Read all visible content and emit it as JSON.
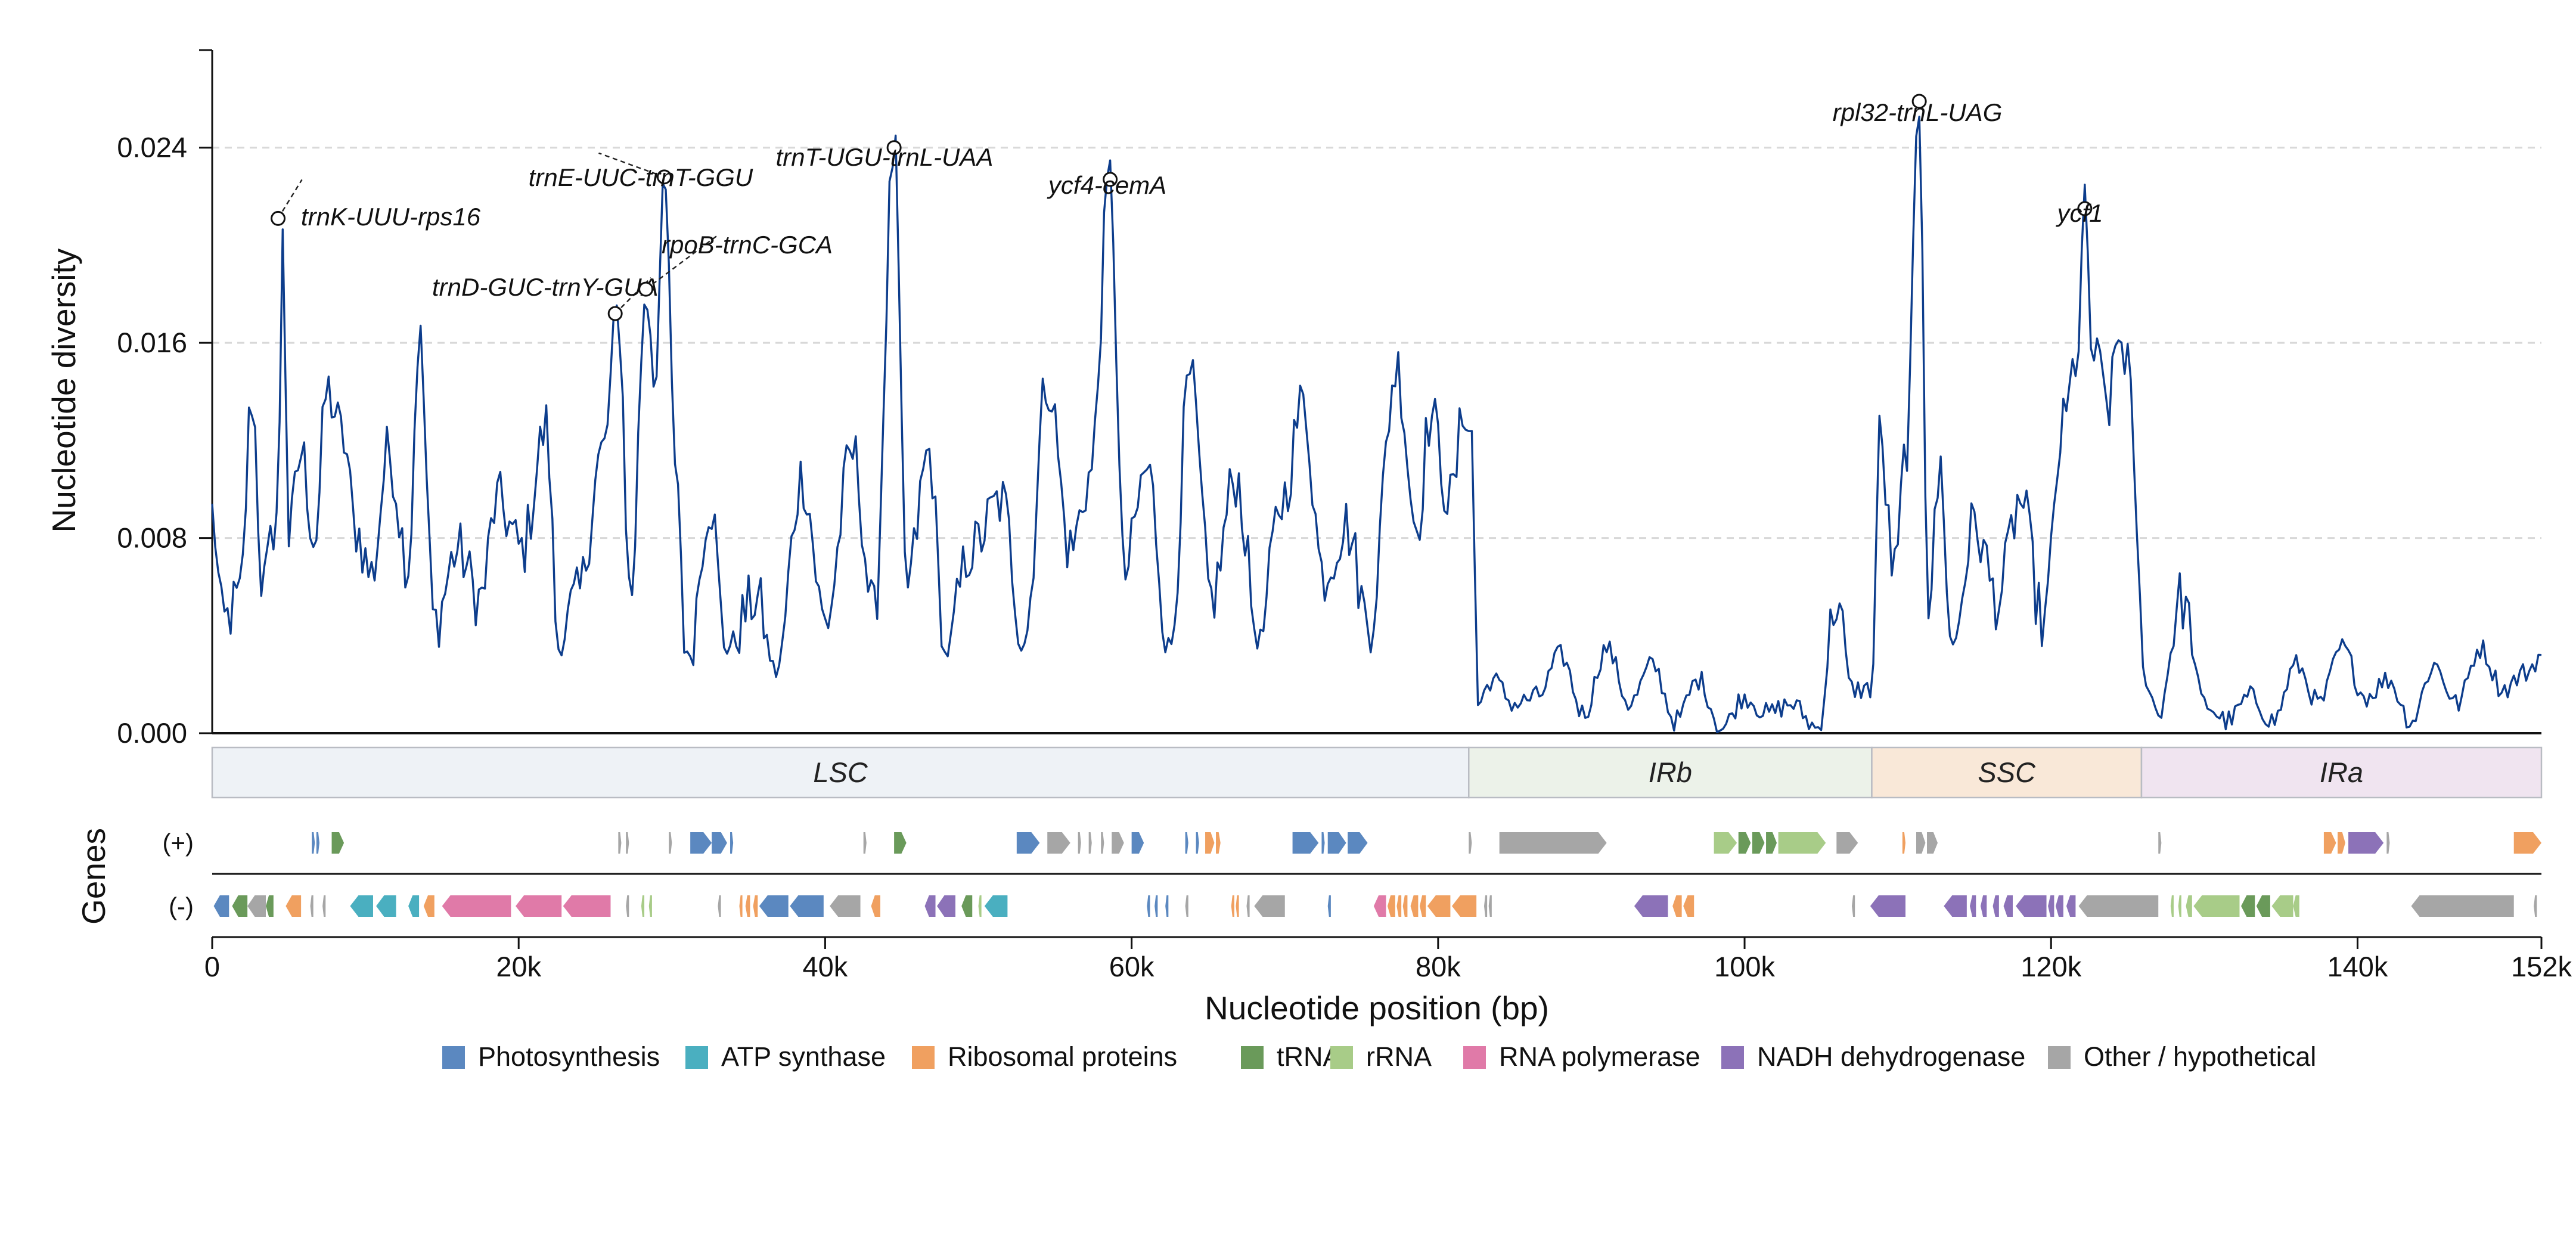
{
  "chart_data": {
    "type": "line",
    "ylabel": "Nucleotide diversity",
    "xlabel": "Nucleotide position (bp)",
    "xlim": [
      0,
      152000
    ],
    "ylim": [
      0,
      0.028
    ],
    "y_ticks": [
      0.0,
      0.008,
      0.016,
      0.024
    ],
    "y_tick_labels": [
      "0.000",
      "0.008",
      "0.016",
      "0.024"
    ],
    "x_ticks": [
      0,
      20000,
      40000,
      60000,
      80000,
      100000,
      120000,
      140000,
      152000
    ],
    "x_tick_labels": [
      "0",
      "20k",
      "40k",
      "60k",
      "80k",
      "100k",
      "120k",
      "140k",
      "152k"
    ],
    "grid": "horizontal dashed",
    "line_color": "#0d3d8c",
    "series_anchors": [
      [
        0,
        0.009
      ],
      [
        700,
        0.0045
      ],
      [
        1800,
        0.0055
      ],
      [
        2600,
        0.0138
      ],
      [
        3300,
        0.006
      ],
      [
        4300,
        0.0092
      ],
      [
        4600,
        0.021
      ],
      [
        5000,
        0.008
      ],
      [
        5800,
        0.0115
      ],
      [
        6700,
        0.008
      ],
      [
        7500,
        0.014
      ],
      [
        8600,
        0.012
      ],
      [
        9300,
        0.0085
      ],
      [
        10400,
        0.0065
      ],
      [
        11500,
        0.0115
      ],
      [
        12800,
        0.007
      ],
      [
        13500,
        0.0162
      ],
      [
        14500,
        0.0045
      ],
      [
        16000,
        0.0075
      ],
      [
        17500,
        0.0055
      ],
      [
        18600,
        0.0095
      ],
      [
        20200,
        0.0075
      ],
      [
        21800,
        0.0125
      ],
      [
        22600,
        0.0035
      ],
      [
        23800,
        0.0055
      ],
      [
        25500,
        0.0115
      ],
      [
        26500,
        0.0172
      ],
      [
        27300,
        0.0055
      ],
      [
        28300,
        0.0182
      ],
      [
        29000,
        0.0145
      ],
      [
        29500,
        0.0228
      ],
      [
        30200,
        0.0115
      ],
      [
        31000,
        0.003
      ],
      [
        32500,
        0.0095
      ],
      [
        33500,
        0.0035
      ],
      [
        35500,
        0.0055
      ],
      [
        36800,
        0.0025
      ],
      [
        38500,
        0.0105
      ],
      [
        40000,
        0.0045
      ],
      [
        41800,
        0.0115
      ],
      [
        43200,
        0.0048
      ],
      [
        44500,
        0.024
      ],
      [
        45300,
        0.006
      ],
      [
        46800,
        0.0115
      ],
      [
        47800,
        0.0032
      ],
      [
        49500,
        0.0075
      ],
      [
        51500,
        0.0095
      ],
      [
        53000,
        0.0038
      ],
      [
        54500,
        0.0145
      ],
      [
        56000,
        0.0075
      ],
      [
        57300,
        0.0105
      ],
      [
        58600,
        0.0227
      ],
      [
        59500,
        0.0065
      ],
      [
        61000,
        0.0108
      ],
      [
        62500,
        0.0035
      ],
      [
        63800,
        0.0145
      ],
      [
        65200,
        0.0055
      ],
      [
        66800,
        0.0105
      ],
      [
        68300,
        0.0038
      ],
      [
        69800,
        0.0095
      ],
      [
        71200,
        0.0135
      ],
      [
        72500,
        0.0065
      ],
      [
        74000,
        0.0085
      ],
      [
        75500,
        0.0045
      ],
      [
        77300,
        0.015
      ],
      [
        78600,
        0.0085
      ],
      [
        79500,
        0.013
      ],
      [
        80800,
        0.0095
      ],
      [
        81800,
        0.0135
      ],
      [
        82200,
        0.012
      ],
      [
        82600,
        0.0012
      ],
      [
        83500,
        0.0022
      ],
      [
        85000,
        0.0012
      ],
      [
        86500,
        0.0015
      ],
      [
        88000,
        0.0032
      ],
      [
        89500,
        0.0008
      ],
      [
        91000,
        0.0035
      ],
      [
        92500,
        0.0012
      ],
      [
        94000,
        0.0028
      ],
      [
        95500,
        0.0005
      ],
      [
        97000,
        0.0022
      ],
      [
        98500,
        0.0002
      ],
      [
        100000,
        0.0015
      ],
      [
        101500,
        0.0008
      ],
      [
        103000,
        0.0012
      ],
      [
        104800,
        0.0002
      ],
      [
        106000,
        0.0055
      ],
      [
        107000,
        0.0018
      ],
      [
        108300,
        0.0018
      ],
      [
        108800,
        0.012
      ],
      [
        109800,
        0.0065
      ],
      [
        110600,
        0.012
      ],
      [
        111400,
        0.0258
      ],
      [
        112000,
        0.0055
      ],
      [
        112800,
        0.0108
      ],
      [
        113500,
        0.0035
      ],
      [
        115000,
        0.0085
      ],
      [
        116500,
        0.0055
      ],
      [
        118000,
        0.0095
      ],
      [
        119500,
        0.0045
      ],
      [
        120800,
        0.0125
      ],
      [
        121700,
        0.0155
      ],
      [
        122200,
        0.0213
      ],
      [
        122700,
        0.0155
      ],
      [
        123800,
        0.0135
      ],
      [
        124400,
        0.0162
      ],
      [
        125000,
        0.0155
      ],
      [
        125500,
        0.0095
      ],
      [
        126000,
        0.0025
      ],
      [
        127000,
        0.0008
      ],
      [
        128500,
        0.0055
      ],
      [
        130000,
        0.0012
      ],
      [
        131500,
        0.0005
      ],
      [
        133000,
        0.0015
      ],
      [
        134500,
        0.0005
      ],
      [
        136000,
        0.0028
      ],
      [
        137500,
        0.0012
      ],
      [
        139000,
        0.0035
      ],
      [
        140500,
        0.0015
      ],
      [
        142000,
        0.0022
      ],
      [
        143500,
        0.0005
      ],
      [
        145000,
        0.0028
      ],
      [
        146500,
        0.0012
      ],
      [
        148000,
        0.0035
      ],
      [
        149500,
        0.0018
      ],
      [
        151000,
        0.0025
      ],
      [
        152000,
        0.0032
      ]
    ],
    "peaks": [
      {
        "label": "trnK-UUU-rps16",
        "x": 4300,
        "y": 0.0211
      },
      {
        "label": "trnD-GUC-trnY-GUA",
        "x": 26300,
        "y": 0.0172
      },
      {
        "label": "rpoB-trnC-GCA",
        "x": 28300,
        "y": 0.0182
      },
      {
        "label": "trnE-UUC-trnT-GGU",
        "x": 29500,
        "y": 0.0228
      },
      {
        "label": "trnT-UGU-trnL-UAA",
        "x": 44500,
        "y": 0.024
      },
      {
        "label": "ycf4-cemA",
        "x": 58600,
        "y": 0.0227
      },
      {
        "label": "rpl32-trnL-UAG",
        "x": 111400,
        "y": 0.0259
      },
      {
        "label": "ycf1",
        "x": 122200,
        "y": 0.0215
      }
    ],
    "regions": [
      {
        "label": "LSC",
        "start": 0,
        "end": 82000,
        "color": "#eef2f6"
      },
      {
        "label": "IRb",
        "start": 82000,
        "end": 108300,
        "color": "#ecf2e9"
      },
      {
        "label": "SSC",
        "start": 108300,
        "end": 125900,
        "color": "#f9e8d8"
      },
      {
        "label": "IRa",
        "start": 125900,
        "end": 152000,
        "color": "#f0e4f0"
      }
    ],
    "genes_track_label": "Genes",
    "strand_labels": [
      "(+)",
      "(-)"
    ],
    "gene_categories": [
      {
        "name": "Photosynthesis",
        "color": "#5b88c0"
      },
      {
        "name": "ATP synthase",
        "color": "#4aafc0"
      },
      {
        "name": "Ribosomal proteins",
        "color": "#f0a060"
      },
      {
        "name": "tRNA",
        "color": "#6a9a5a"
      },
      {
        "name": "rRNA",
        "color": "#a8cc88"
      },
      {
        "name": "RNA polymerase",
        "color": "#e07aa8"
      },
      {
        "name": "NADH dehydrogenase",
        "color": "#8c72b8"
      },
      {
        "name": "Other / hypothetical",
        "color": "#a6a6a6"
      }
    ],
    "genes_plus": [
      [
        6500,
        6700,
        0
      ],
      [
        6800,
        7000,
        0
      ],
      [
        7800,
        8600,
        3
      ],
      [
        26500,
        26700,
        7
      ],
      [
        27000,
        27200,
        7
      ],
      [
        29800,
        30000,
        7
      ],
      [
        31200,
        32600,
        0
      ],
      [
        32600,
        33600,
        0
      ],
      [
        33800,
        34000,
        0
      ],
      [
        42500,
        42700,
        7
      ],
      [
        44500,
        45300,
        3
      ],
      [
        52500,
        54000,
        0
      ],
      [
        54500,
        56000,
        7
      ],
      [
        56500,
        56700,
        7
      ],
      [
        57200,
        57400,
        7
      ],
      [
        58000,
        58200,
        7
      ],
      [
        58700,
        59500,
        7
      ],
      [
        60000,
        60800,
        0
      ],
      [
        63500,
        63700,
        0
      ],
      [
        64200,
        64400,
        0
      ],
      [
        64800,
        65400,
        2
      ],
      [
        65500,
        65800,
        2
      ],
      [
        70500,
        72200,
        0
      ],
      [
        72400,
        72600,
        0
      ],
      [
        72800,
        74000,
        0
      ],
      [
        74100,
        75400,
        0
      ],
      [
        82000,
        82200,
        7
      ],
      [
        84000,
        91000,
        7
      ],
      [
        98000,
        99500,
        4
      ],
      [
        99600,
        100400,
        3
      ],
      [
        100500,
        101300,
        3
      ],
      [
        101400,
        102100,
        3
      ],
      [
        102200,
        105300,
        4
      ],
      [
        106000,
        107400,
        7
      ],
      [
        110300,
        110500,
        2
      ],
      [
        111200,
        111800,
        7
      ],
      [
        111900,
        112600,
        7
      ],
      [
        127000,
        127200,
        7
      ],
      [
        137800,
        138600,
        2
      ],
      [
        138700,
        139200,
        2
      ],
      [
        139400,
        141700,
        6
      ],
      [
        141900,
        142100,
        7
      ],
      [
        150200,
        152000,
        2
      ]
    ],
    "genes_minus": [
      [
        100,
        1100,
        0
      ],
      [
        1300,
        2300,
        3
      ],
      [
        2300,
        3500,
        7
      ],
      [
        3500,
        4000,
        3
      ],
      [
        4800,
        5800,
        2
      ],
      [
        6400,
        6600,
        7
      ],
      [
        7200,
        7400,
        7
      ],
      [
        9000,
        10500,
        1
      ],
      [
        10700,
        12000,
        1
      ],
      [
        12800,
        13500,
        1
      ],
      [
        13800,
        14500,
        2
      ],
      [
        15000,
        19500,
        5
      ],
      [
        19800,
        22800,
        5
      ],
      [
        22900,
        26000,
        5
      ],
      [
        27000,
        27200,
        7
      ],
      [
        28000,
        28200,
        4
      ],
      [
        28500,
        28700,
        4
      ],
      [
        33000,
        33200,
        7
      ],
      [
        34400,
        34600,
        2
      ],
      [
        34800,
        35100,
        2
      ],
      [
        35300,
        35600,
        2
      ],
      [
        35700,
        37600,
        0
      ],
      [
        37700,
        39900,
        0
      ],
      [
        40300,
        42300,
        7
      ],
      [
        43000,
        43600,
        2
      ],
      [
        46500,
        47200,
        6
      ],
      [
        47300,
        48500,
        6
      ],
      [
        48900,
        49600,
        3
      ],
      [
        50000,
        50200,
        4
      ],
      [
        50400,
        51900,
        1
      ],
      [
        61000,
        61200,
        0
      ],
      [
        61500,
        61700,
        0
      ],
      [
        62200,
        62400,
        0
      ],
      [
        63500,
        63700,
        7
      ],
      [
        66500,
        66700,
        2
      ],
      [
        66800,
        67000,
        2
      ],
      [
        67500,
        67700,
        7
      ],
      [
        68000,
        70000,
        7
      ],
      [
        72800,
        73000,
        0
      ],
      [
        75800,
        76600,
        5
      ],
      [
        76700,
        77200,
        2
      ],
      [
        77300,
        77600,
        2
      ],
      [
        77700,
        78000,
        2
      ],
      [
        78200,
        78700,
        2
      ],
      [
        78800,
        79200,
        2
      ],
      [
        79300,
        80800,
        2
      ],
      [
        80900,
        82500,
        2
      ],
      [
        83000,
        83200,
        7
      ],
      [
        83300,
        83500,
        7
      ],
      [
        92800,
        95000,
        6
      ],
      [
        95300,
        95900,
        2
      ],
      [
        96000,
        96700,
        2
      ],
      [
        107000,
        107200,
        7
      ],
      [
        108200,
        110500,
        6
      ],
      [
        113000,
        114500,
        6
      ],
      [
        114700,
        115100,
        6
      ],
      [
        115400,
        115800,
        6
      ],
      [
        116200,
        116600,
        6
      ],
      [
        116900,
        117500,
        6
      ],
      [
        117700,
        119700,
        6
      ],
      [
        119800,
        120200,
        6
      ],
      [
        120300,
        120800,
        6
      ],
      [
        121000,
        121600,
        6
      ],
      [
        121800,
        127000,
        7
      ],
      [
        127800,
        128000,
        4
      ],
      [
        128300,
        128500,
        4
      ],
      [
        128800,
        129200,
        4
      ],
      [
        129300,
        132300,
        4
      ],
      [
        132400,
        133300,
        3
      ],
      [
        133400,
        134300,
        3
      ],
      [
        134400,
        135800,
        4
      ],
      [
        135800,
        136200,
        4
      ],
      [
        143500,
        150200,
        7
      ],
      [
        151500,
        151700,
        7
      ]
    ]
  }
}
